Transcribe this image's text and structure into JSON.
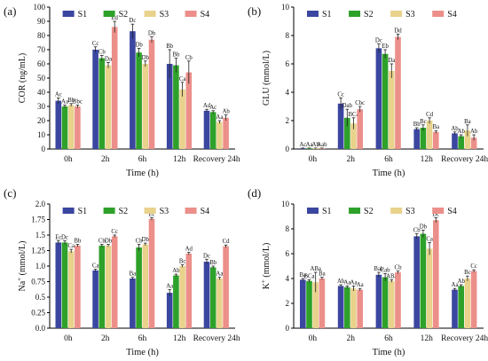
{
  "colors": {
    "S1": "#3b46a0",
    "S2": "#2ea12a",
    "S3": "#e8d28c",
    "S4": "#ec8f8a"
  },
  "chart_data": [
    {
      "id": "a",
      "panel_label": "(a)",
      "type": "bar",
      "categories": [
        "0h",
        "2h",
        "6h",
        "12h",
        "Recovery 24h"
      ],
      "xlabel": "Time (h)",
      "ylabel": "COR (ng/mL)",
      "ylim": [
        0,
        100
      ],
      "yticks": [
        0,
        10,
        20,
        30,
        40,
        50,
        60,
        70,
        80,
        90,
        100
      ],
      "legend_position": "top",
      "series": [
        {
          "name": "S1",
          "values": [
            34,
            70,
            83,
            60,
            27
          ],
          "errors": [
            2,
            2,
            5,
            10,
            1
          ],
          "labels": [
            "Ac",
            "Cc",
            "Dc",
            "Bb",
            "Ad"
          ]
        },
        {
          "name": "S2",
          "values": [
            30,
            64,
            68,
            59,
            26
          ],
          "errors": [
            1,
            2,
            3,
            5,
            1
          ],
          "labels": [
            "Aa",
            "Cb",
            "Db",
            "Bb",
            "Ac"
          ]
        },
        {
          "name": "S3",
          "values": [
            31,
            59,
            60,
            42,
            19
          ],
          "errors": [
            1,
            2,
            2,
            5,
            1
          ],
          "labels": [
            "Bb",
            "Da",
            "Db",
            "Ca",
            "Aa"
          ]
        },
        {
          "name": "S4",
          "values": [
            30,
            86,
            77,
            54,
            22
          ],
          "errors": [
            1,
            4,
            2,
            8,
            2
          ],
          "labels": [
            "Bbc",
            "Ed",
            "Db",
            "Cb",
            "Ab"
          ]
        }
      ]
    },
    {
      "id": "b",
      "panel_label": "(b)",
      "type": "bar",
      "categories": [
        "0h",
        "2h",
        "6h",
        "12h",
        "Recovery 24h"
      ],
      "xlabel": "Time (h)",
      "ylabel": "GLU (mmol/L)",
      "ylim": [
        0,
        10
      ],
      "yticks": [
        0,
        2,
        4,
        6,
        8,
        10
      ],
      "legend_position": "top",
      "series": [
        {
          "name": "S1",
          "values": [
            0.05,
            3.2,
            7.1,
            1.4,
            1.1
          ],
          "errors": [
            0.02,
            0.4,
            0.3,
            0.1,
            0.1
          ],
          "labels": [
            "Ac",
            "Cc",
            "Dc",
            "Bb",
            "Ab"
          ]
        },
        {
          "name": "S2",
          "values": [
            0.05,
            2.2,
            6.7,
            1.5,
            0.9
          ],
          "errors": [
            0.02,
            0.6,
            0.3,
            0.2,
            0.1
          ],
          "labels": [
            "Aa",
            "Dab",
            "Eb",
            "Bc",
            "Ab"
          ]
        },
        {
          "name": "S3",
          "values": [
            0.05,
            1.8,
            5.5,
            2.0,
            1.3
          ],
          "errors": [
            0.02,
            0.4,
            0.5,
            0.2,
            0.4
          ],
          "labels": [
            "Ab",
            "BCa",
            "Da",
            "Cd",
            "Ba"
          ]
        },
        {
          "name": "S4",
          "values": [
            0.05,
            2.8,
            7.9,
            1.2,
            0.8
          ],
          "errors": [
            0.02,
            0.2,
            0.2,
            0.1,
            0.2
          ],
          "labels": [
            "Aab",
            "Cbc",
            "Dd",
            "Ba",
            "Ab"
          ]
        }
      ]
    },
    {
      "id": "c",
      "panel_label": "(c)",
      "type": "bar",
      "categories": [
        "0h",
        "2h",
        "6h",
        "12h",
        "Recovery 24h"
      ],
      "xlabel": "Time (h)",
      "ylabel_parts": [
        "Na",
        "+",
        " (mmol/L)"
      ],
      "ylim": [
        0,
        2.0
      ],
      "yticks": [
        0,
        0.25,
        0.5,
        0.75,
        1.0,
        1.25,
        1.5,
        1.75,
        2.0
      ],
      "ytick_labels": [
        "0.0",
        "0.25",
        "0.5",
        "0.75",
        "1.0",
        "1.25",
        "1.5",
        "1.75",
        "2.0"
      ],
      "legend_position": "top",
      "series": [
        {
          "name": "S1",
          "values": [
            1.38,
            0.93,
            0.8,
            0.57,
            1.07
          ],
          "errors": [
            0.03,
            0.02,
            0.02,
            0.05,
            0.04
          ],
          "labels": [
            "Ec",
            "Ca",
            "Ba",
            "Aa",
            "Dc"
          ]
        },
        {
          "name": "S2",
          "values": [
            1.38,
            1.33,
            1.3,
            0.85,
            0.98
          ],
          "errors": [
            0.03,
            0.02,
            0.05,
            0.02,
            0.02
          ],
          "labels": [
            "Dc",
            "Cb",
            "Cb",
            "Ab",
            "Bb"
          ]
        },
        {
          "name": "S3",
          "values": [
            1.24,
            1.33,
            1.35,
            1.0,
            0.8
          ],
          "errors": [
            0.03,
            0.02,
            0.02,
            0.02,
            0.02
          ],
          "labels": [
            "Ca",
            "Db",
            "Db",
            "Bc",
            "Aa"
          ]
        },
        {
          "name": "S4",
          "values": [
            1.33,
            1.48,
            1.76,
            1.2,
            1.32
          ],
          "errors": [
            0.02,
            0.02,
            0.02,
            0.02,
            0.02
          ],
          "labels": [
            "Bb",
            "Cc",
            "Ec",
            "Ad",
            "Cd"
          ]
        }
      ]
    },
    {
      "id": "d",
      "panel_label": "(d)",
      "type": "bar",
      "categories": [
        "0h",
        "2h",
        "6h",
        "12h",
        "Recovery 24h"
      ],
      "xlabel": "Time (h)",
      "ylabel_parts": [
        "K",
        "+",
        " (mmol/L)"
      ],
      "ylim": [
        0,
        10
      ],
      "yticks": [
        0,
        2,
        4,
        6,
        8,
        10
      ],
      "legend_position": "top",
      "series": [
        {
          "name": "S1",
          "values": [
            3.9,
            3.4,
            4.3,
            7.4,
            3.1
          ],
          "errors": [
            0.1,
            0.1,
            0.2,
            0.2,
            0.1
          ],
          "labels": [
            "Ba",
            "Ab",
            "Bab",
            "Cb",
            "Aa"
          ]
        },
        {
          "name": "S2",
          "values": [
            3.8,
            3.3,
            4.1,
            7.6,
            3.4
          ],
          "errors": [
            0.1,
            0.1,
            0.3,
            0.3,
            0.1
          ],
          "labels": [
            "BCa",
            "Aa",
            "Cab",
            "Db",
            "Ab"
          ]
        },
        {
          "name": "S3",
          "values": [
            3.7,
            3.2,
            3.8,
            6.4,
            4.0
          ],
          "errors": [
            0.8,
            0.2,
            0.1,
            0.5,
            0.2
          ],
          "labels": [
            "ABa",
            "Aa",
            "ABa",
            "Ca",
            "Bc"
          ]
        },
        {
          "name": "S4",
          "values": [
            4.0,
            3.1,
            4.5,
            8.7,
            4.6
          ],
          "errors": [
            0.1,
            0.1,
            0.1,
            0.2,
            0.1
          ],
          "labels": [
            "Ba",
            "Aa",
            "Cb",
            "Dc",
            "Cc"
          ]
        }
      ]
    }
  ]
}
